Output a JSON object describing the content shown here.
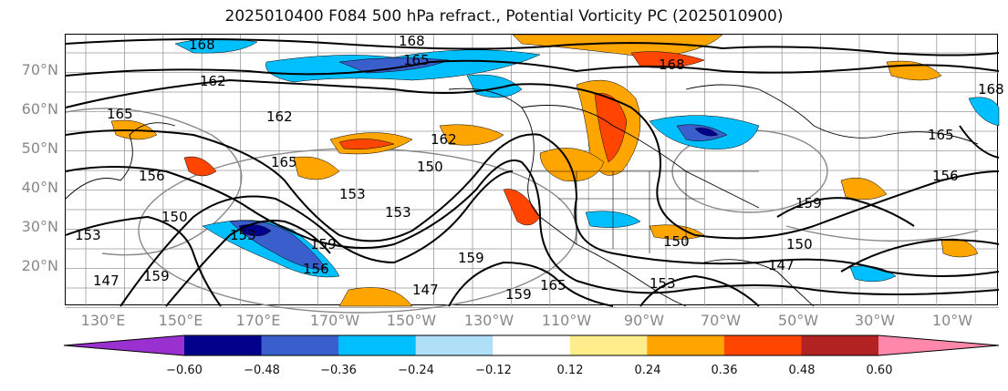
{
  "title": "2025010400 F084 500 hPa refract., Potential Vorticity PC (2025010900)",
  "lat_labels": [
    "70°N",
    "60°N",
    "50°N",
    "40°N",
    "30°N",
    "20°N"
  ],
  "lon_labels": [
    "130°E",
    "150°E",
    "170°E",
    "170°W",
    "150°W",
    "130°W",
    "110°W",
    "90°W",
    "70°W",
    "50°W",
    "30°W",
    "10°W"
  ],
  "contour_labels": [
    "168",
    "168",
    "165",
    "162",
    "165",
    "165",
    "162",
    "156",
    "153",
    "150",
    "153",
    "147",
    "159",
    "159",
    "153",
    "150",
    "147",
    "159",
    "150",
    "153",
    "165",
    "165",
    "159",
    "168",
    "162",
    "159",
    "156",
    "150",
    "147",
    "153",
    "168",
    "156"
  ],
  "colorbar": {
    "ticks": [
      "−0.60",
      "−0.48",
      "−0.36",
      "−0.24",
      "−0.12",
      "0.12",
      "0.24",
      "0.36",
      "0.48",
      "0.60"
    ],
    "colors": [
      "#9b30d0",
      "#00008b",
      "#3a5fcd",
      "#00bfff",
      "#b0e0f8",
      "#ffffff",
      "#ffec8b",
      "#ffa500",
      "#ff4500",
      "#b22222",
      "#ff88aa"
    ]
  },
  "shading_colors": {
    "neg_light": "#00bfff",
    "neg_mid": "#3a5fcd",
    "neg_dark": "#00008b",
    "pos_light": "#ffa500",
    "pos_mid": "#ff4500",
    "pos_dark": "#b22222",
    "pos_pale": "#ffec8b"
  }
}
